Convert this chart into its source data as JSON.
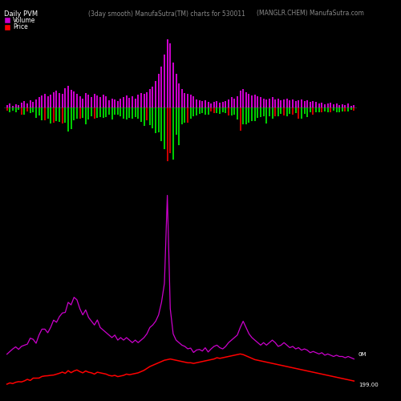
{
  "title_left": "Daily PVM",
  "title_center": "(3day smooth) ManufaSutra(TM) charts for 530011",
  "title_right": "(MANGLR.CHEM) ManufaSutra.com",
  "legend_volume_color": "#cc00cc",
  "legend_price_color": "#ff0000",
  "background_color": "#000000",
  "volume_bar_color_up": "#cc00cc",
  "volume_bar_color_down": "#00cc00",
  "volume_bar_color_red": "#cc0000",
  "price_line_color": "#cc00cc",
  "price_line_color2": "#ff0000",
  "annotation_0m": "0M",
  "annotation_price": "199.00",
  "n_bars": 120
}
